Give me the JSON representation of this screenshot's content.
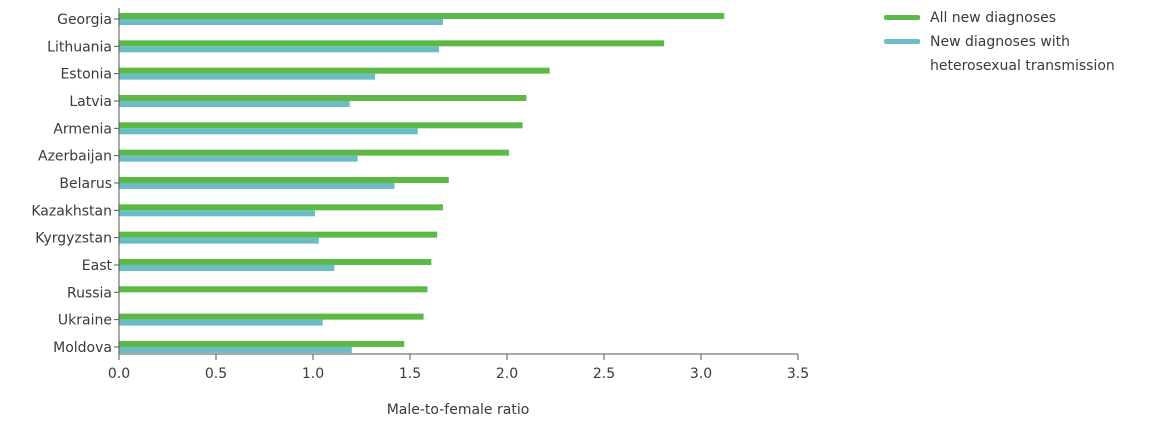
{
  "chart_data": {
    "type": "bar",
    "orientation": "horizontal",
    "categories": [
      "Georgia",
      "Lithuania",
      "Estonia",
      "Latvia",
      "Armenia",
      "Azerbaijan",
      "Belarus",
      "Kazakhstan",
      "Kyrgyzstan",
      "East",
      "Russia",
      "Ukraine",
      "Moldova"
    ],
    "series": [
      {
        "name": "All new diagnoses",
        "color": "#5cb946",
        "values": [
          3.12,
          2.81,
          2.22,
          2.1,
          2.08,
          2.01,
          1.7,
          1.67,
          1.64,
          1.61,
          1.59,
          1.57,
          1.47
        ]
      },
      {
        "name": "New diagnoses with heterosexual transmission",
        "color": "#6bbcc4",
        "values": [
          1.67,
          1.65,
          1.32,
          1.19,
          1.54,
          1.23,
          1.42,
          1.01,
          1.03,
          1.11,
          null,
          1.05,
          1.2
        ]
      }
    ],
    "xlim": [
      0,
      3.5
    ],
    "xticks": [
      "0.0",
      "0.5",
      "1.0",
      "1.5",
      "2.0",
      "2.5",
      "3.0",
      "3.5"
    ],
    "xlabel": "Male-to-female ratio",
    "ylabel": "",
    "title": "",
    "grid": false,
    "legend_position": "top-right"
  },
  "legend": {
    "items": [
      {
        "label": "All new diagnoses",
        "color": "#5cb946"
      },
      {
        "label": "New diagnoses with heterosexual transmission",
        "color": "#6bbcc4"
      }
    ]
  }
}
